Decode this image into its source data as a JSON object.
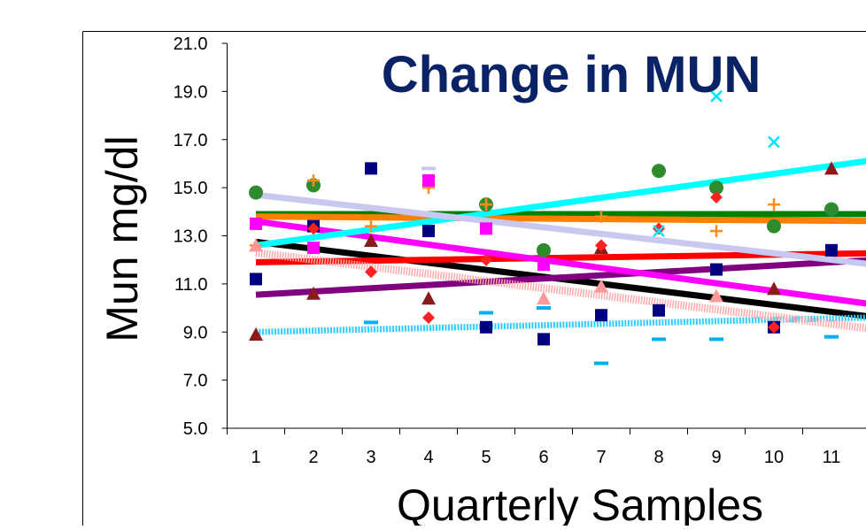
{
  "chart_data": {
    "type": "scatter",
    "title": "Change in MUN",
    "y_label": "Mun mg/dl",
    "x_label": "Quarterly Samples",
    "x": [
      1,
      2,
      3,
      4,
      5,
      6,
      7,
      8,
      9,
      10,
      11
    ],
    "xticks": [
      1,
      2,
      3,
      4,
      5,
      6,
      7,
      8,
      9,
      10,
      11
    ],
    "xlim": [
      0.5,
      12.5
    ],
    "ylim": [
      5,
      21
    ],
    "yticks": [
      {
        "value": 5,
        "label": "5.0"
      },
      {
        "value": 7,
        "label": "7.0"
      },
      {
        "value": 9,
        "label": "9.0"
      },
      {
        "value": 11,
        "label": "11.0"
      },
      {
        "value": 13,
        "label": "13.0"
      },
      {
        "value": 15,
        "label": "15.0"
      },
      {
        "value": 17,
        "label": "17.0"
      },
      {
        "value": 19,
        "label": "19.0"
      },
      {
        "value": 21,
        "label": "21.0"
      }
    ],
    "trend_x": [
      1,
      12.5
    ],
    "series": [
      {
        "color": "#000080",
        "marker": "square",
        "values": [
          11.2,
          13.4,
          15.8,
          13.2,
          9.2,
          8.7,
          9.7,
          9.9,
          11.6,
          9.2,
          12.4
        ],
        "trend": [
          12.75,
          9.4
        ],
        "trend_color": "#000000",
        "trend_style": "solid"
      },
      {
        "color": "#2e8b2e",
        "marker": "circle",
        "values": [
          14.8,
          15.1,
          null,
          null,
          14.3,
          12.4,
          null,
          15.7,
          15.0,
          13.4,
          14.1
        ],
        "trend": [
          13.9,
          13.9
        ],
        "trend_color": "#008000",
        "trend_style": "solid"
      },
      {
        "color": "#8b1a1a",
        "marker": "triangle",
        "values": [
          8.9,
          10.6,
          12.8,
          10.4,
          null,
          null,
          12.5,
          null,
          null,
          10.8,
          15.8
        ],
        "trend": [
          10.55,
          12.1
        ],
        "trend_color": "#800080",
        "trend_style": "solid"
      },
      {
        "color": "#ff8c1a",
        "marker": "plus",
        "values": [
          12.6,
          15.3,
          13.4,
          15.0,
          14.3,
          null,
          13.8,
          null,
          13.2,
          14.3,
          null
        ],
        "trend": [
          13.8,
          13.6
        ],
        "trend_color": "#ff7f00",
        "trend_style": "solid"
      },
      {
        "color": "#ff2020",
        "marker": "diamond",
        "values": [
          null,
          13.3,
          11.5,
          9.6,
          12.0,
          null,
          12.6,
          13.3,
          14.6,
          9.2,
          null
        ],
        "trend": [
          11.9,
          12.3
        ],
        "trend_color": "#ff0000",
        "trend_style": "solid"
      },
      {
        "color": "#ff00ff",
        "marker": "square",
        "values": [
          13.5,
          12.5,
          null,
          15.3,
          13.3,
          11.8,
          null,
          null,
          null,
          null,
          null
        ],
        "trend": [
          13.6,
          9.9
        ],
        "trend_color": "#ff00ff",
        "trend_style": "solid"
      },
      {
        "color": "#00e5ff",
        "marker": "x",
        "values": [
          null,
          null,
          null,
          null,
          null,
          null,
          null,
          13.2,
          18.8,
          16.9,
          null
        ],
        "trend": [
          12.6,
          16.4
        ],
        "trend_color": "#00ffff",
        "trend_style": "solid"
      },
      {
        "color": "#00b0f0",
        "marker": "dash",
        "values": [
          null,
          null,
          9.4,
          null,
          9.8,
          10.0,
          7.7,
          8.7,
          8.7,
          null,
          8.8
        ],
        "trend": [
          9.0,
          9.65
        ],
        "trend_color": "#33ccff",
        "trend_style": "dotted"
      },
      {
        "color": "#c8c8f0",
        "marker": "dash",
        "values": [
          null,
          null,
          null,
          15.8,
          null,
          null,
          null,
          null,
          null,
          null,
          null
        ],
        "trend": [
          14.7,
          11.6
        ],
        "trend_color": "#c8c8f0",
        "trend_style": "solid"
      },
      {
        "color": "#ff9999",
        "marker": "triangle",
        "values": [
          12.6,
          null,
          null,
          null,
          null,
          10.4,
          10.9,
          null,
          10.5,
          null,
          null
        ],
        "trend": [
          12.3,
          8.9
        ],
        "trend_color": "#ffaaaa",
        "trend_style": "hatched"
      }
    ]
  }
}
